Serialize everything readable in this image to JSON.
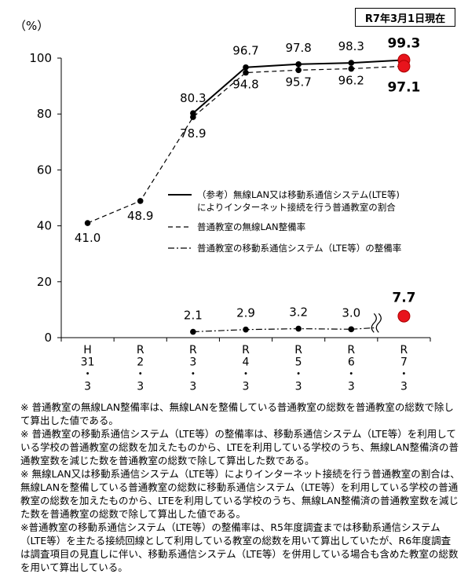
{
  "as_of_label": "R7年3月1日現在",
  "chart_data": {
    "type": "line",
    "ylabel": "（%）",
    "ylim": [
      0,
      100
    ],
    "yticks": [
      "0",
      "20",
      "40",
      "60",
      "80",
      "100"
    ],
    "categories": [
      [
        "H",
        "31",
        "・",
        "3"
      ],
      [
        "R",
        "2",
        "・",
        "3"
      ],
      [
        "R",
        "3",
        "・",
        "3"
      ],
      [
        "R",
        "4",
        "・",
        "3"
      ],
      [
        "R",
        "5",
        "・",
        "3"
      ],
      [
        "R",
        "6",
        "・",
        "3"
      ],
      [
        "R",
        "7",
        "・",
        "3"
      ]
    ],
    "series": [
      {
        "name": "（参考）無線LAN又は移動系通信システム(LTE等)によりインターネット接続を行う普通教室の割合",
        "style": "solid",
        "values": [
          null,
          null,
          80.3,
          96.7,
          97.8,
          98.3,
          99.3
        ],
        "labels": [
          "",
          "",
          "80.3",
          "96.7",
          "97.8",
          "98.3",
          "99.3"
        ]
      },
      {
        "name": "普通教室の無線LAN整備率",
        "style": "dashed",
        "values": [
          41.0,
          48.9,
          78.9,
          94.8,
          95.7,
          96.2,
          97.1
        ],
        "labels": [
          "41.0",
          "48.9",
          "78.9",
          "94.8",
          "95.7",
          "96.2",
          "97.1"
        ]
      },
      {
        "name": "普通教室の移動系通信システム（LTE等）の整備率",
        "style": "dashdot",
        "values": [
          null,
          null,
          2.1,
          2.9,
          3.2,
          3.0,
          7.7
        ],
        "labels": [
          "",
          "",
          "2.1",
          "2.9",
          "3.2",
          "3.0",
          "7.7"
        ]
      }
    ],
    "legend": [
      [
        "（参考）無線LAN又は移動系通信システム(LTE等)",
        "によりインターネット接続を行う普通教室の割合"
      ],
      [
        "普通教室の無線LAN整備率"
      ],
      [
        "普通教室の移動系通信システム（LTE等）の整備率"
      ]
    ],
    "highlight_color": "#e8141c",
    "marker_color": "#000000"
  },
  "notes": [
    "※ 普通教室の無線LAN整備率は、無線LANを整備している普通教室の総数を普通教室の総数で除して算出した値である。",
    "※ 普通教室の移動系通信システム（LTE等）の整備率は、移動系通信システム（LTE等）を利用している学校の普通教室の総数を加えたものから、LTEを利用している学校のうち、無線LAN整備済の普通教室数を減じた数を普通教室の総数で除して算出した数である。",
    "※ 無線LAN又は移動系通信システム（LTE等）によりインターネット接続を行う普通教室の割合は、無線LANを整備している普通教室の総数に移動系通信システム（LTE等）を利用している学校の普通教室の総数を加えたものから、LTEを利用している学校のうち、無線LAN整備済の普通教室数を減じた数を普通教室の総数で除して算出した値である。",
    "※普通教室の移動系通信システム（LTE等）の整備率は、R5年度調査までは移動系通信システム（LTE等）を主たる接続回線として利用している教室の総数を用いて算出していたが、R6年度調査は調査項目の見直しに伴い、移動系通信システム（LTE等）を併用している場合も含めた教室の総数を用いて算出している。"
  ]
}
